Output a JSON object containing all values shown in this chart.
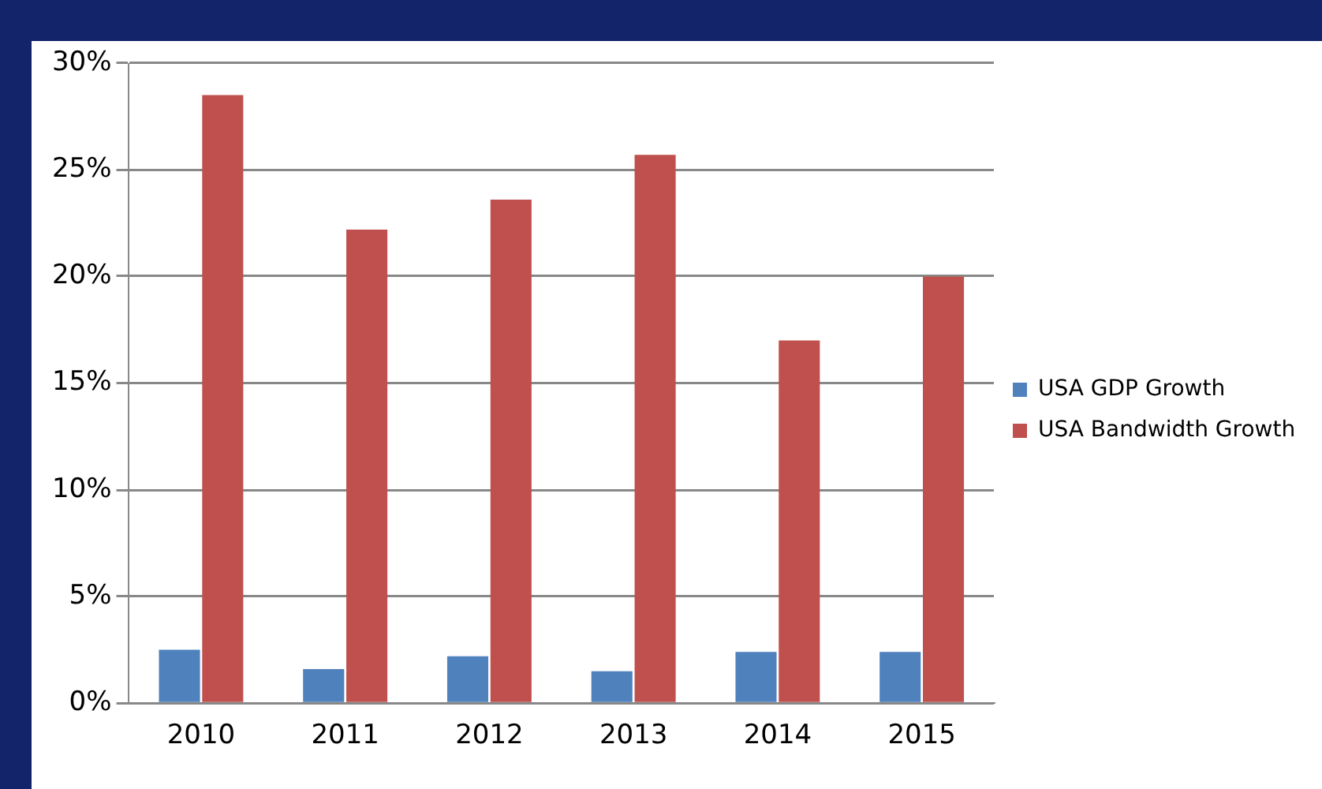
{
  "chart_data": {
    "type": "bar",
    "categories": [
      "2010",
      "2011",
      "2012",
      "2013",
      "2014",
      "2015"
    ],
    "series": [
      {
        "name": "USA GDP Growth",
        "color": "#4f81bd",
        "values": [
          2.5,
          1.6,
          2.2,
          1.5,
          2.4,
          2.4
        ]
      },
      {
        "name": "USA Bandwidth Growth",
        "color": "#c0504d",
        "values": [
          28.5,
          22.2,
          23.6,
          25.7,
          17.0,
          20.0
        ]
      }
    ],
    "ylim": [
      0,
      30
    ],
    "yticks": [
      {
        "value": 0,
        "label": "0%"
      },
      {
        "value": 5,
        "label": "5%"
      },
      {
        "value": 10,
        "label": "10%"
      },
      {
        "value": 15,
        "label": "15%"
      },
      {
        "value": 20,
        "label": "20%"
      },
      {
        "value": 25,
        "label": "25%"
      },
      {
        "value": 30,
        "label": "30%"
      }
    ],
    "grid": "y",
    "legend": "right"
  }
}
